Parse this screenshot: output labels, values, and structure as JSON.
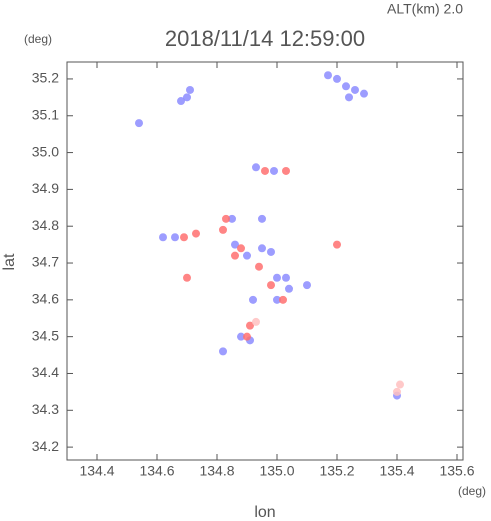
{
  "chart_data": {
    "type": "scatter",
    "top_label": "ALT(km) 2.0",
    "title": "2018/11/14 12:59:00",
    "y_unit": "(deg)",
    "x_unit": "(deg)",
    "ylabel": "lat",
    "xlabel": "lon",
    "xlim": [
      134.3,
      135.62
    ],
    "ylim": [
      34.165,
      35.246
    ],
    "xticks": [
      134.4,
      134.6,
      134.8,
      {
        "value": 135,
        "label": "135.0"
      },
      135.2,
      135.4,
      135.6
    ],
    "yticks": [
      34.2,
      34.3,
      34.4,
      34.5,
      34.6,
      34.7,
      34.8,
      34.9,
      {
        "value": 35,
        "label": "35.0"
      },
      35.1,
      35.2
    ],
    "series": [
      {
        "color": "#8c8cff",
        "x": [
          135.17,
          135.2,
          135.23,
          135.26,
          135.29,
          135.24,
          134.54,
          134.7,
          134.71,
          134.68,
          134.93,
          134.99,
          134.62,
          134.66,
          134.86,
          134.9,
          134.95,
          134.98,
          135.0,
          135.03,
          134.88,
          134.91,
          134.85,
          134.95,
          134.92,
          135.0,
          135.04,
          135.1,
          135.4,
          134.82
        ],
        "y": [
          35.21,
          35.2,
          35.18,
          35.17,
          35.16,
          35.15,
          35.08,
          35.15,
          35.17,
          35.14,
          34.96,
          34.95,
          34.77,
          34.77,
          34.75,
          34.72,
          34.74,
          34.73,
          34.66,
          34.66,
          34.5,
          34.49,
          34.82,
          34.82,
          34.6,
          34.6,
          34.63,
          34.64,
          34.34,
          34.46
        ]
      },
      {
        "color": "#ff7070",
        "x": [
          134.83,
          134.82,
          134.86,
          134.88,
          134.94,
          134.98,
          135.02,
          134.91,
          134.9,
          135.2,
          134.96,
          135.03,
          134.7,
          134.73,
          134.69
        ],
        "y": [
          34.82,
          34.79,
          34.72,
          34.74,
          34.69,
          34.64,
          34.6,
          34.53,
          34.5,
          34.75,
          34.95,
          34.95,
          34.66,
          34.78,
          34.77
        ]
      },
      {
        "color": "#ffc0c0",
        "x": [
          135.4,
          135.41,
          134.93
        ],
        "y": [
          34.35,
          34.37,
          34.54
        ]
      }
    ]
  }
}
